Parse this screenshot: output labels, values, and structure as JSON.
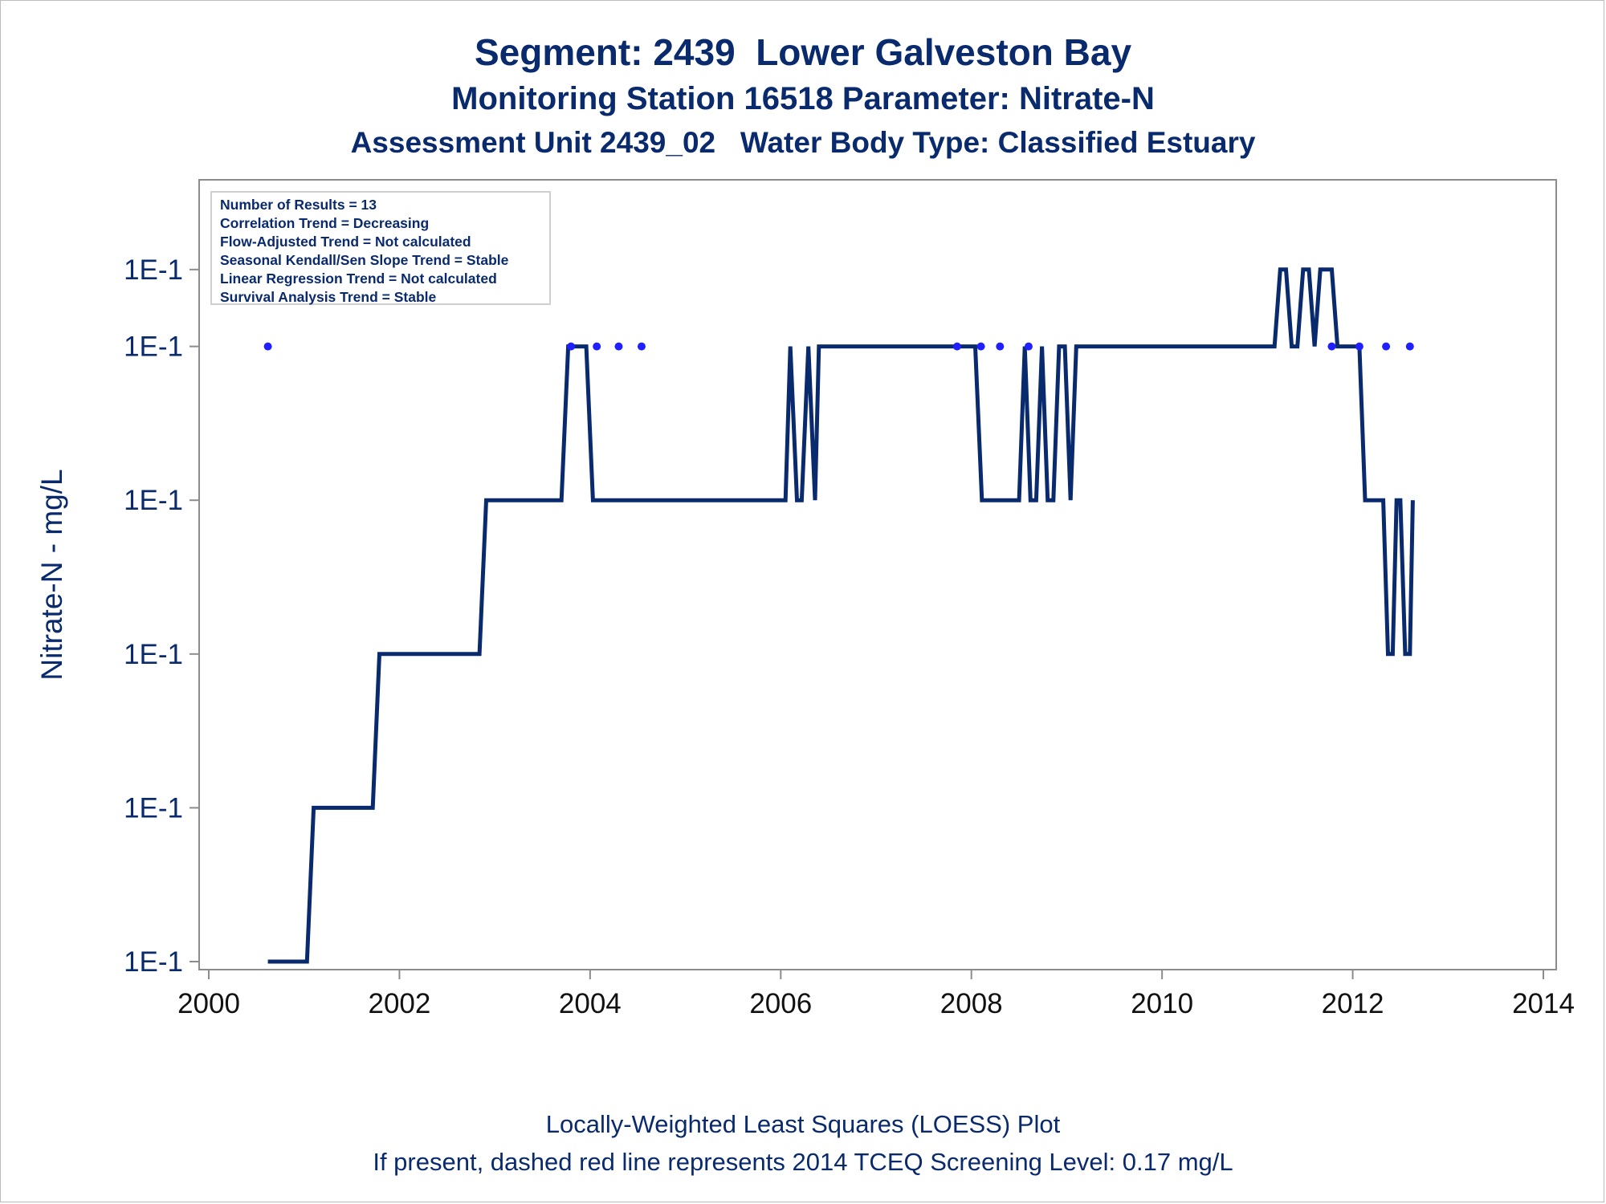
{
  "title": "Segment: 2439  Lower Galveston Bay",
  "subtitle1": "Monitoring Station 16518 Parameter: Nitrate-N",
  "subtitle2": "Assessment Unit 2439_02   Water Body Type: Classified Estuary",
  "footnotes": [
    "Locally-Weighted Least Squares (LOESS) Plot",
    "If present, dashed red line represents 2014 TCEQ Screening Level: 0.17 mg/L"
  ],
  "stats_box": [
    "Number of Results = 13",
    "Correlation Trend = Decreasing",
    "Flow-Adjusted Trend = Not calculated",
    "Seasonal Kendall/Sen Slope Trend = Stable",
    "Linear Regression Trend = Not calculated",
    "Survival Analysis Trend = Stable"
  ],
  "colors": {
    "line": "#0a2a6e",
    "points": "#1f1fff",
    "text": "#0a2a6e",
    "axis": "#8c8c8c"
  },
  "chart_data": {
    "type": "line",
    "xlabel": "",
    "ylabel": "Nitrate-N - mg/L",
    "xlim": [
      2000,
      2014
    ],
    "ylim": [
      0,
      5
    ],
    "x_ticks": [
      2000,
      2002,
      2004,
      2006,
      2008,
      2010,
      2012,
      2014
    ],
    "y_ticks": [
      {
        "value": 0,
        "label": "1E-1"
      },
      {
        "value": 1,
        "label": "1E-1"
      },
      {
        "value": 2,
        "label": "1E-1"
      },
      {
        "value": 3,
        "label": "1E-1"
      },
      {
        "value": 4,
        "label": "1E-1"
      },
      {
        "value": 4.5,
        "label": "1E-1"
      }
    ],
    "grid": false,
    "series": [
      {
        "kind": "line",
        "points": [
          [
            2000.62,
            0
          ],
          [
            2001.03,
            0
          ],
          [
            2001.1,
            1
          ],
          [
            2001.72,
            1
          ],
          [
            2001.79,
            2
          ],
          [
            2002.84,
            2
          ],
          [
            2002.91,
            3
          ],
          [
            2003.7,
            3
          ],
          [
            2003.77,
            4
          ],
          [
            2003.96,
            4
          ],
          [
            2004.03,
            3
          ],
          [
            2006.05,
            3
          ],
          [
            2006.1,
            4
          ],
          [
            2006.17,
            3
          ],
          [
            2006.22,
            3
          ],
          [
            2006.29,
            4
          ],
          [
            2006.36,
            3
          ],
          [
            2006.4,
            4
          ],
          [
            2007.85,
            4
          ],
          [
            2008.04,
            4
          ],
          [
            2008.11,
            3
          ],
          [
            2008.5,
            3
          ],
          [
            2008.56,
            4
          ],
          [
            2008.62,
            3
          ],
          [
            2008.68,
            3
          ],
          [
            2008.74,
            4
          ],
          [
            2008.8,
            3
          ],
          [
            2008.86,
            3
          ],
          [
            2008.92,
            4
          ],
          [
            2008.98,
            4
          ],
          [
            2009.04,
            3
          ],
          [
            2009.1,
            4
          ],
          [
            2011.18,
            4
          ],
          [
            2011.24,
            4.5
          ],
          [
            2011.3,
            4.5
          ],
          [
            2011.36,
            4
          ],
          [
            2011.42,
            4
          ],
          [
            2011.48,
            4.5
          ],
          [
            2011.54,
            4.5
          ],
          [
            2011.6,
            4
          ],
          [
            2011.66,
            4.5
          ],
          [
            2011.78,
            4.5
          ],
          [
            2011.84,
            4
          ],
          [
            2012.07,
            4
          ],
          [
            2012.13,
            3
          ],
          [
            2012.32,
            3
          ],
          [
            2012.37,
            2
          ],
          [
            2012.42,
            2
          ],
          [
            2012.46,
            3
          ],
          [
            2012.5,
            3
          ],
          [
            2012.55,
            2
          ],
          [
            2012.6,
            2
          ],
          [
            2012.63,
            3
          ]
        ]
      },
      {
        "kind": "points",
        "points": [
          [
            2000.62,
            4
          ],
          [
            2003.8,
            4
          ],
          [
            2004.07,
            4
          ],
          [
            2004.3,
            4
          ],
          [
            2004.54,
            4
          ],
          [
            2007.85,
            4
          ],
          [
            2008.1,
            4
          ],
          [
            2008.3,
            4
          ],
          [
            2008.6,
            4
          ],
          [
            2011.78,
            4
          ],
          [
            2012.07,
            4
          ],
          [
            2012.35,
            4
          ],
          [
            2012.6,
            4
          ]
        ]
      }
    ]
  }
}
